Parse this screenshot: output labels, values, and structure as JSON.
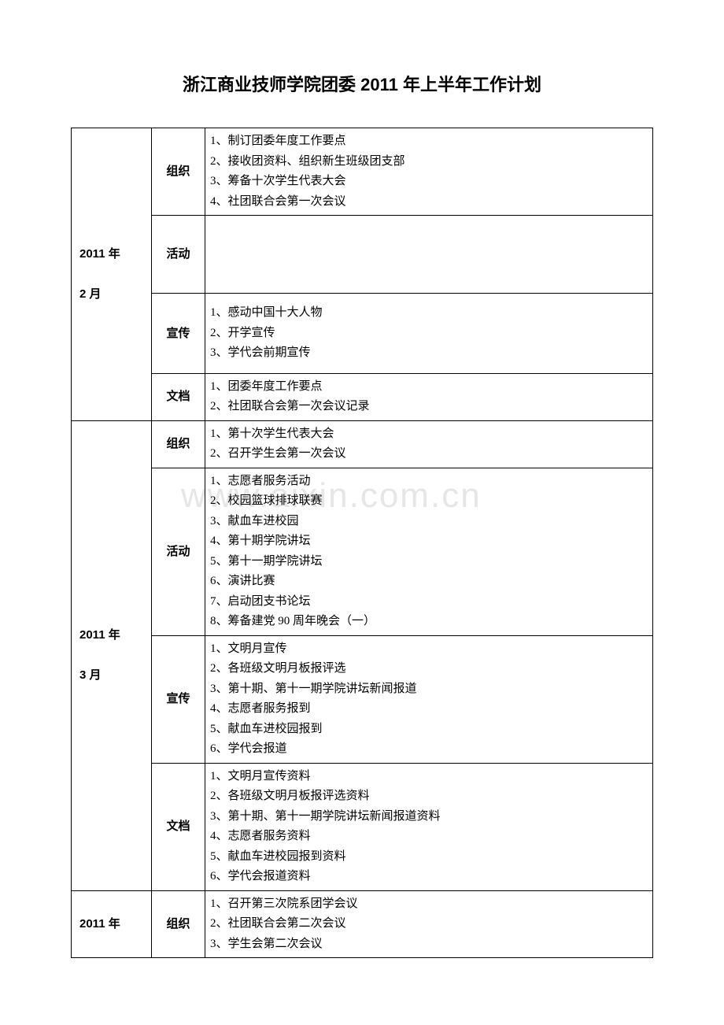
{
  "title": "浙江商业技师学院团委 2011 年上半年工作计划",
  "watermark": "www.aixin.com.cn",
  "periods": [
    {
      "label": "2011 年\n\n2 月",
      "rows": [
        {
          "cat": "组织",
          "items": [
            "1、制订团委年度工作要点",
            "2、接收团资料、组织新生班级团支部",
            "3、筹备十次学生代表大会",
            "4、社团联合会第一次会议"
          ]
        },
        {
          "cat": "活动",
          "items": []
        },
        {
          "cat": "宣传",
          "items": [
            "1、感动中国十大人物",
            "2、开学宣传",
            "3、学代会前期宣传"
          ]
        },
        {
          "cat": "文档",
          "items": [
            "1、团委年度工作要点",
            "2、社团联合会第一次会议记录"
          ]
        }
      ]
    },
    {
      "label": "2011 年\n\n3 月",
      "rows": [
        {
          "cat": "组织",
          "items": [
            "1、第十次学生代表大会",
            "2、召开学生会第一次会议"
          ]
        },
        {
          "cat": "活动",
          "items": [
            "1、志愿者服务活动",
            "2、校园篮球排球联赛",
            "3、献血车进校园",
            "4、第十期学院讲坛",
            "5、第十一期学院讲坛",
            "6、演讲比赛",
            "7、启动团支书论坛",
            "8、筹备建党 90 周年晚会（一）"
          ]
        },
        {
          "cat": "宣传",
          "items": [
            "1、文明月宣传",
            "2、各班级文明月板报评选",
            "3、第十期、第十一期学院讲坛新闻报道",
            "4、志愿者服务报到",
            "5、献血车进校园报到",
            "6、学代会报道"
          ]
        },
        {
          "cat": "文档",
          "items": [
            "1、文明月宣传资料",
            "2、各班级文明月板报评选资料",
            "3、第十期、第十一期学院讲坛新闻报道资料",
            "4、志愿者服务资料",
            "5、献血车进校园报到资料",
            "6、学代会报道资料"
          ]
        }
      ]
    },
    {
      "label": "2011 年",
      "rows": [
        {
          "cat": "组织",
          "items": [
            "1、召开第三次院系团学会议",
            "2、社团联合会第二次会议",
            "3、学生会第二次会议"
          ]
        }
      ]
    }
  ]
}
